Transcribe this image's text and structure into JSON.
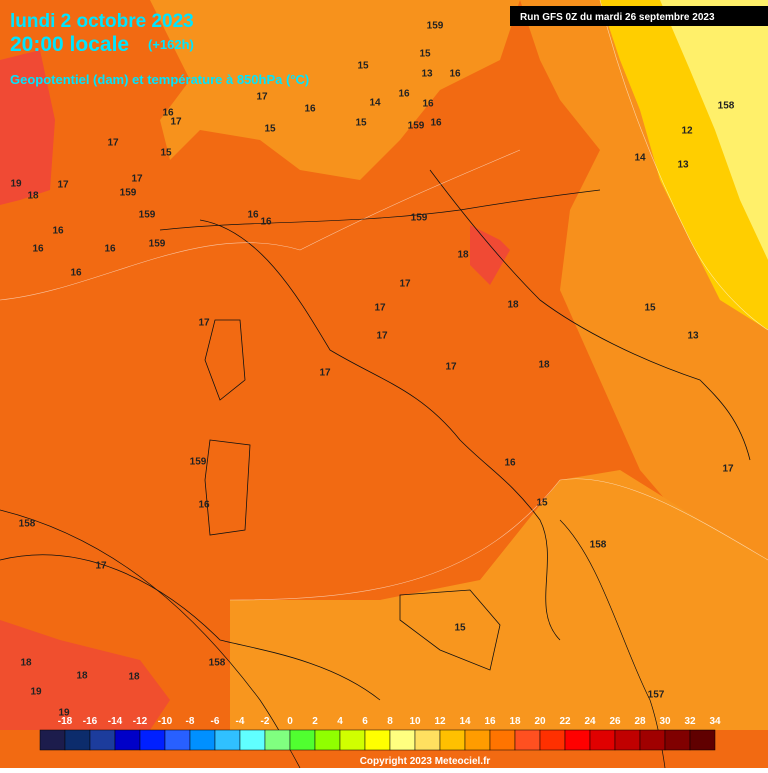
{
  "header": {
    "date": "lundi 2 octobre 2023",
    "time": "20:00 locale",
    "lead": "(+162h)",
    "subtitle": "Geopotentiel (dam) et température à 850hPa (°C)",
    "run": "Run GFS 0Z du mardi 26 septembre 2023"
  },
  "map": {
    "labels": [
      "159",
      "15",
      "13",
      "16",
      "15",
      "14",
      "16",
      "16",
      "15",
      "159",
      "16",
      "17",
      "16",
      "15",
      "16",
      "17",
      "15",
      "17",
      "19",
      "17",
      "18",
      "159",
      "17",
      "159",
      "16",
      "16",
      "16",
      "159",
      "16",
      "16",
      "16",
      "159",
      "18",
      "17",
      "18",
      "17",
      "17",
      "17",
      "17",
      "17",
      "18",
      "15",
      "13",
      "14",
      "13",
      "12",
      "158",
      "159",
      "16",
      "158",
      "17",
      "16",
      "15",
      "158",
      "17",
      "15",
      "18",
      "18",
      "18",
      "158",
      "19",
      "157",
      "19"
    ]
  },
  "legend": {
    "ticks": [
      -18,
      -16,
      -14,
      -12,
      -10,
      -8,
      -6,
      -4,
      -2,
      0,
      2,
      4,
      6,
      8,
      10,
      12,
      14,
      16,
      18,
      20,
      22,
      24,
      26,
      28,
      30,
      32,
      34
    ],
    "colors": [
      "#1c1c4c",
      "#0c2c6c",
      "#1c3c9c",
      "#0000c8",
      "#0020ff",
      "#2860ff",
      "#0090ff",
      "#30c0ff",
      "#60ffff",
      "#80ff80",
      "#50ff30",
      "#90ff00",
      "#d0ff00",
      "#ffff00",
      "#ffff80",
      "#ffe060",
      "#ffc000",
      "#ff9c00",
      "#ff7400",
      "#ff5020",
      "#ff3000",
      "#ff0000",
      "#e00000",
      "#c00000",
      "#a00000",
      "#800000",
      "#600000"
    ]
  },
  "footer": {
    "copyright": "Copyright 2023 Meteociel.fr"
  }
}
